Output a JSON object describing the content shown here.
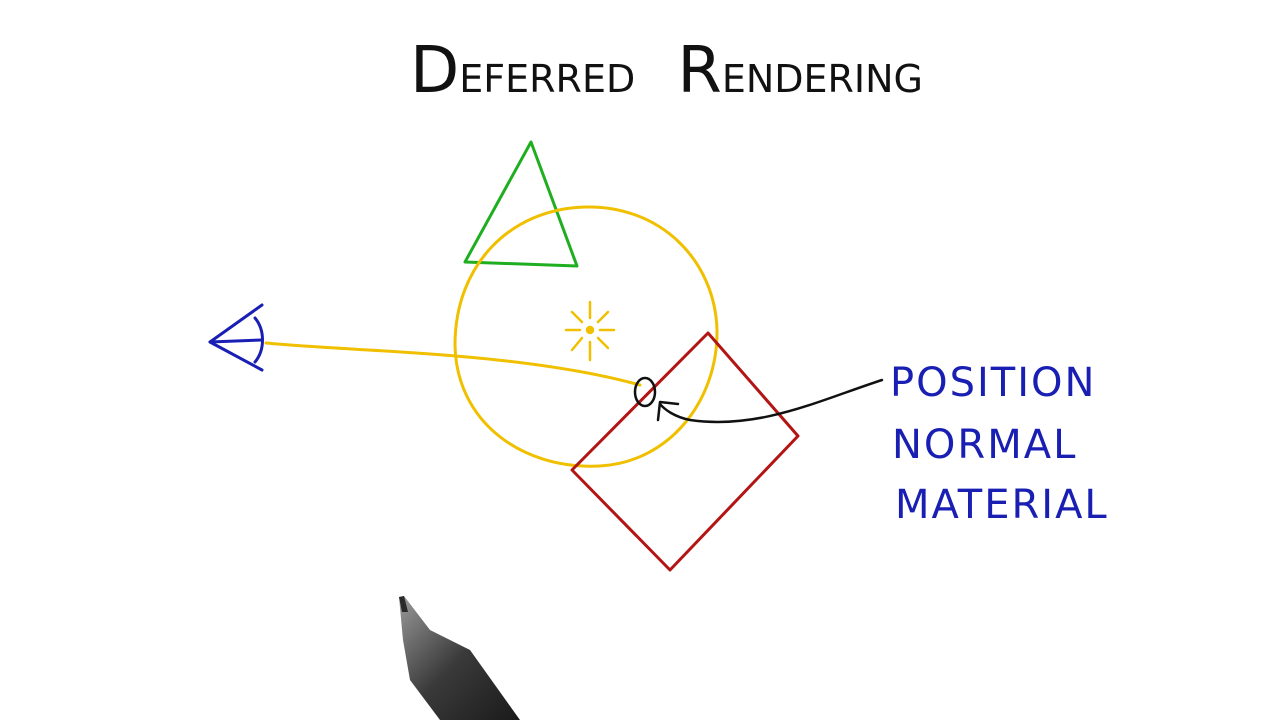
{
  "title": {
    "word1_initial": "D",
    "word1_rest": "EFERRED",
    "word2_initial": "R",
    "word2_rest": "ENDERING"
  },
  "gbuffer_attributes": [
    "POSITION",
    "NORMAL",
    "MATERIAL"
  ],
  "colors": {
    "title": "#111111",
    "eye": "#1a1fb3",
    "light_volume": "#f0c000",
    "triangle": "#1fae1f",
    "square": "#b31515",
    "arrow": "#111111",
    "labels": "#1a1fb3"
  },
  "icons": {
    "viewer": "eye-icon",
    "light": "light-source-icon",
    "pen": "pen-icon"
  }
}
